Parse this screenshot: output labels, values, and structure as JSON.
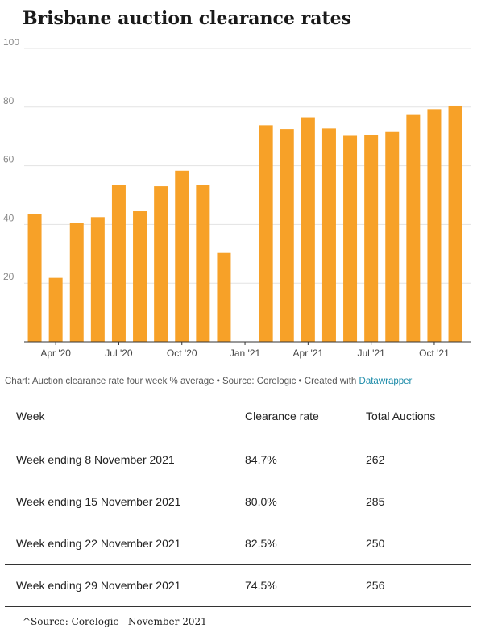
{
  "title": "Brisbane auction clearance rates",
  "credit": {
    "text": "Chart: Auction clearance rate four week % average • Source: Corelogic • Created with ",
    "link": "Datawrapper",
    "link_color": "#1a8aa8"
  },
  "chart_data": {
    "type": "bar",
    "title": "Brisbane auction clearance rates",
    "bar_color": "#f7a128",
    "ylim": [
      0,
      100
    ],
    "yticks": [
      20,
      40,
      60,
      80,
      100
    ],
    "x_tick_labels": [
      "Apr '20",
      "Jul '20",
      "Oct '20",
      "Jan '21",
      "Apr '21",
      "Jul '21",
      "Oct '21"
    ],
    "x_tick_positions": [
      1.5,
      4.5,
      7.5,
      10.5,
      13.5,
      16.5,
      19.5
    ],
    "values": [
      43.6,
      21.8,
      40.4,
      42.5,
      53.5,
      44.5,
      53.0,
      58.3,
      53.3,
      30.3,
      null,
      73.8,
      72.5,
      76.5,
      72.7,
      70.2,
      70.5,
      71.5,
      77.3,
      79.3,
      80.5
    ],
    "grid": true
  },
  "table": {
    "headers": [
      "Week",
      "Clearance rate",
      "Total Auctions"
    ],
    "rows": [
      [
        "Week ending 8 November 2021",
        "84.7%",
        "262"
      ],
      [
        "Week ending 15 November 2021",
        "80.0%",
        "285"
      ],
      [
        "Week ending 22 November 2021",
        "82.5%",
        "250"
      ],
      [
        "Week ending 29 November 2021",
        "74.5%",
        "256"
      ]
    ]
  },
  "footnote": "^Source: Corelogic - November 2021"
}
